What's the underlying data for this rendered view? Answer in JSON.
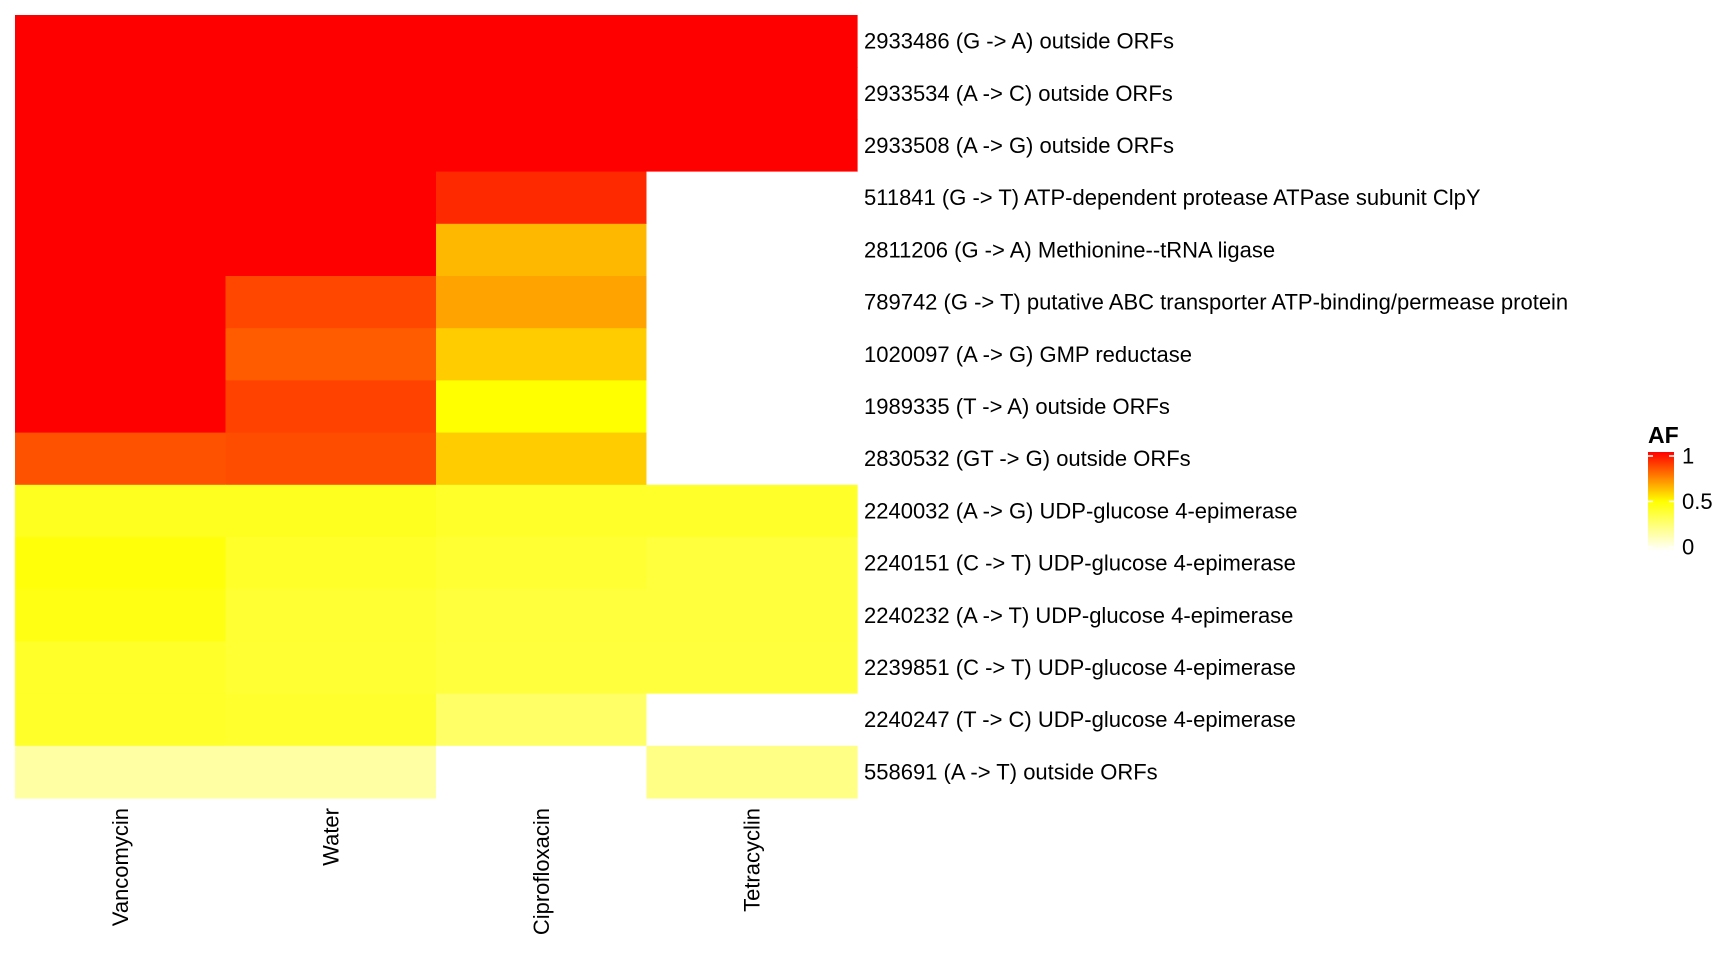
{
  "chart_data": {
    "type": "heatmap",
    "columns": [
      "Vancomycin",
      "Water",
      "Ciprofloxacin",
      "Tetracyclin"
    ],
    "rows": [
      "2933486 (G -> A) outside ORFs",
      "2933534 (A -> C) outside ORFs",
      "2933508 (A -> G) outside ORFs",
      "511841 (G -> T) ATP-dependent protease ATPase subunit ClpY",
      "2811206 (G -> A) Methionine--tRNA ligase",
      "789742 (G -> T) putative ABC transporter ATP-binding/permease protein",
      "1020097 (A -> G) GMP reductase",
      "1989335 (T -> A) outside ORFs",
      "2830532 (GT -> G) outside ORFs",
      "2240032 (A -> G) UDP-glucose 4-epimerase",
      "2240151 (C -> T) UDP-glucose 4-epimerase",
      "2240232 (A -> T) UDP-glucose 4-epimerase",
      "2239851 (C -> T) UDP-glucose 4-epimerase",
      "2240247 (T -> C) UDP-glucose 4-epimerase",
      "558691 (A -> T) outside ORFs"
    ],
    "values": [
      [
        1.0,
        1.0,
        1.0,
        1.0
      ],
      [
        1.0,
        1.0,
        1.0,
        1.0
      ],
      [
        1.0,
        1.0,
        1.0,
        1.0
      ],
      [
        1.0,
        1.0,
        0.92,
        null
      ],
      [
        1.0,
        1.0,
        0.64,
        null
      ],
      [
        1.0,
        0.86,
        0.68,
        null
      ],
      [
        1.0,
        0.82,
        0.6,
        null
      ],
      [
        1.0,
        0.87,
        0.5,
        null
      ],
      [
        0.84,
        0.85,
        0.6,
        null
      ],
      [
        0.44,
        0.44,
        0.42,
        0.42
      ],
      [
        0.48,
        0.42,
        0.4,
        0.38
      ],
      [
        0.46,
        0.4,
        0.38,
        0.38
      ],
      [
        0.42,
        0.4,
        0.38,
        0.38
      ],
      [
        0.42,
        0.41,
        0.3,
        null
      ],
      [
        0.18,
        0.18,
        null,
        0.24
      ]
    ],
    "legend": {
      "title": "AF",
      "ticks": [
        0,
        0.5,
        1
      ],
      "range": [
        0,
        1
      ],
      "placement": "right"
    },
    "colors": {
      "low": "#ffffff",
      "mid": "#ffff00",
      "high": "#ff0000",
      "missing": "#ffffff"
    }
  }
}
